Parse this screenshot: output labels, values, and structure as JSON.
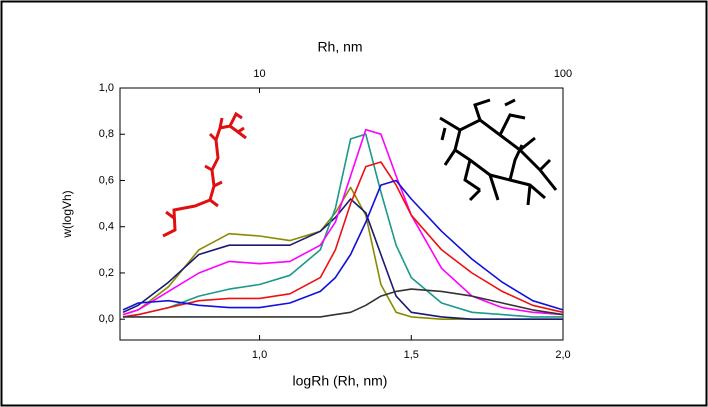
{
  "chart_data": {
    "type": "line",
    "title_x": "logRh (Rh, nm)",
    "title_y": "w(logVh)",
    "title_x2": "Rh, nm",
    "x": [
      0.55,
      0.6,
      0.7,
      0.8,
      0.9,
      1.0,
      1.1,
      1.2,
      1.25,
      1.3,
      1.35,
      1.4,
      1.45,
      1.5,
      1.6,
      1.7,
      1.8,
      1.9,
      2.0
    ],
    "series": [
      {
        "color": "#8a8a00",
        "values": [
          0.02,
          0.04,
          0.14,
          0.3,
          0.37,
          0.36,
          0.34,
          0.38,
          0.46,
          0.57,
          0.45,
          0.15,
          0.03,
          0.01,
          0,
          0,
          0,
          0,
          0
        ]
      },
      {
        "color": "#1a1a70",
        "values": [
          0.03,
          0.06,
          0.16,
          0.28,
          0.32,
          0.32,
          0.32,
          0.38,
          0.44,
          0.52,
          0.46,
          0.28,
          0.1,
          0.03,
          0.01,
          0,
          0,
          0,
          0
        ]
      },
      {
        "color": "#1a9a8a",
        "values": [
          0.01,
          0.02,
          0.05,
          0.1,
          0.13,
          0.15,
          0.19,
          0.3,
          0.48,
          0.78,
          0.8,
          0.55,
          0.32,
          0.18,
          0.07,
          0.03,
          0.02,
          0.01,
          0.01
        ]
      },
      {
        "color": "#ff00ff",
        "values": [
          0.02,
          0.04,
          0.12,
          0.2,
          0.25,
          0.24,
          0.25,
          0.32,
          0.42,
          0.62,
          0.82,
          0.8,
          0.62,
          0.45,
          0.22,
          0.1,
          0.05,
          0.03,
          0.02
        ]
      },
      {
        "color": "#ee1111",
        "values": [
          0.01,
          0.02,
          0.05,
          0.08,
          0.09,
          0.09,
          0.11,
          0.18,
          0.3,
          0.5,
          0.66,
          0.68,
          0.58,
          0.45,
          0.3,
          0.2,
          0.12,
          0.06,
          0.03
        ]
      },
      {
        "color": "#1111dd",
        "values": [
          0.04,
          0.07,
          0.08,
          0.06,
          0.05,
          0.05,
          0.07,
          0.12,
          0.18,
          0.28,
          0.42,
          0.58,
          0.6,
          0.52,
          0.38,
          0.26,
          0.16,
          0.08,
          0.04
        ]
      },
      {
        "color": "#333333",
        "values": [
          0.01,
          0.01,
          0.01,
          0.01,
          0.01,
          0.01,
          0.01,
          0.01,
          0.02,
          0.03,
          0.06,
          0.1,
          0.12,
          0.13,
          0.12,
          0.1,
          0.07,
          0.04,
          0.02
        ]
      }
    ],
    "xlim": [
      0.54,
      2.0
    ],
    "xticks": [
      {
        "value": 1.0,
        "label": "1,0"
      },
      {
        "value": 1.5,
        "label": "1,5"
      },
      {
        "value": 2.0,
        "label": "2,0"
      }
    ],
    "ylim": [
      -0.09,
      1.0
    ],
    "yticks": [
      {
        "value": 0.0,
        "label": "0,0"
      },
      {
        "value": 0.2,
        "label": "0,2"
      },
      {
        "value": 0.4,
        "label": "0,4"
      },
      {
        "value": 0.6,
        "label": "0,6"
      },
      {
        "value": 0.8,
        "label": "0,8"
      },
      {
        "value": 1.0,
        "label": "1,0"
      }
    ],
    "x2lim": [
      3.47,
      100
    ],
    "x2log": true,
    "x2ticks": [
      10,
      100
    ]
  }
}
